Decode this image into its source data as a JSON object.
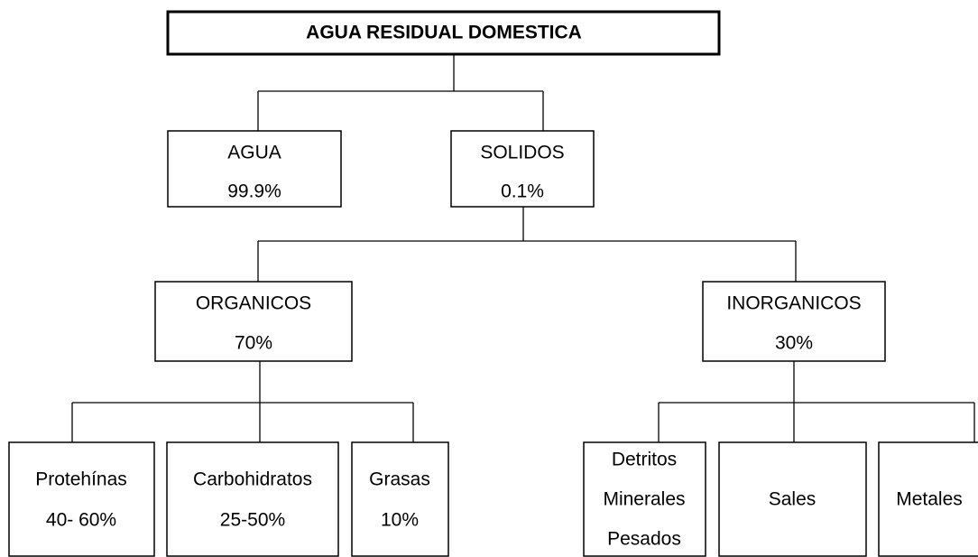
{
  "nodes": [
    {
      "lines": [
        "AGUA RESIDUAL DOMESTICA"
      ]
    },
    {
      "lines": [
        "AGUA",
        "99.9%"
      ]
    },
    {
      "lines": [
        "SOLIDOS",
        "0.1%"
      ]
    },
    {
      "lines": [
        "ORGANICOS",
        "70%"
      ]
    },
    {
      "lines": [
        "INORGANICOS",
        "30%"
      ]
    },
    {
      "lines": [
        "Protehínas",
        "40- 60%"
      ]
    },
    {
      "lines": [
        "Carbohidratos",
        "25-50%"
      ]
    },
    {
      "lines": [
        "Grasas",
        "10%"
      ]
    },
    {
      "lines": [
        "Detritos",
        "Minerales",
        "Pesados"
      ]
    },
    {
      "lines": [
        "Sales"
      ]
    },
    {
      "lines": [
        "Metales"
      ]
    }
  ]
}
